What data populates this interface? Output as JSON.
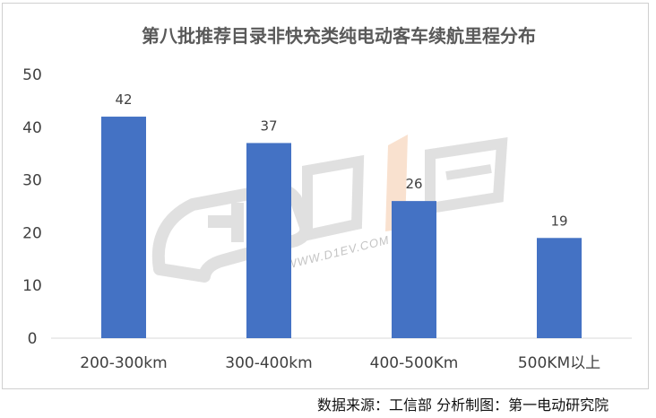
{
  "chart_data": {
    "type": "bar",
    "title": "第八批推荐目录非快充类纯电动客车续航里程分布",
    "categories": [
      "200-300km",
      "300-400km",
      "400-500Km",
      "500KM以上"
    ],
    "values": [
      42,
      37,
      26,
      19
    ],
    "ylim": [
      0,
      50
    ],
    "yticks": [
      0,
      10,
      20,
      30,
      40,
      50
    ],
    "grid": false,
    "legend": "none",
    "bar_color": "#4472C4"
  },
  "watermark": {
    "text": "第1电动",
    "sub": "WWW.D1EV.COM"
  },
  "caption": "数据来源：工信部  分析制图：第一电动研究院"
}
